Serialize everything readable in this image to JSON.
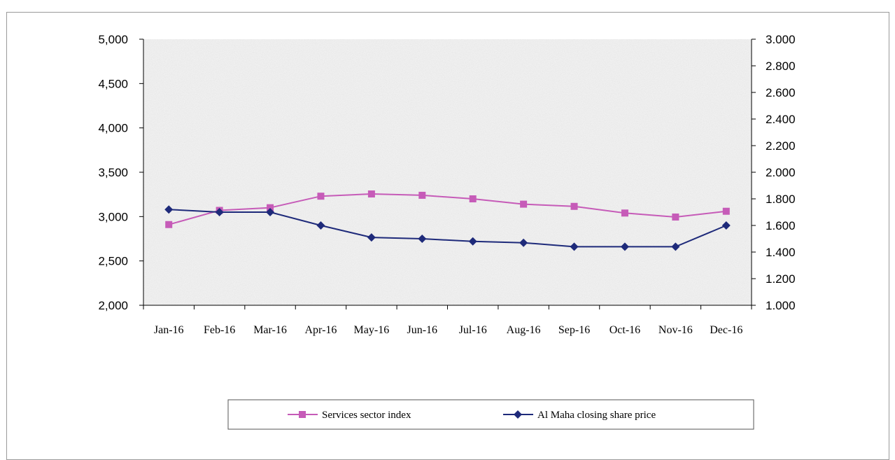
{
  "chart_data": {
    "type": "line",
    "categories": [
      "Jan-16",
      "Feb-16",
      "Mar-16",
      "Apr-16",
      "May-16",
      "Jun-16",
      "Jul-16",
      "Aug-16",
      "Sep-16",
      "Oct-16",
      "Nov-16",
      "Dec-16"
    ],
    "y_left": {
      "range": [
        2000,
        5000
      ],
      "ticks": [
        2000,
        2500,
        3000,
        3500,
        4000,
        4500,
        5000
      ],
      "tick_labels": [
        "2,000",
        "2,500",
        "3,000",
        "3,500",
        "4,000",
        "4,500",
        "5,000"
      ]
    },
    "y_right": {
      "range": [
        1.0,
        3.0
      ],
      "ticks": [
        1.0,
        1.2,
        1.4,
        1.6,
        1.8,
        2.0,
        2.2,
        2.4,
        2.6,
        2.8,
        3.0
      ],
      "tick_labels": [
        "1.000",
        "1.200",
        "1.400",
        "1.600",
        "1.800",
        "2.000",
        "2.200",
        "2.400",
        "2.600",
        "2.800",
        "3.000"
      ]
    },
    "series": [
      {
        "name": "Services sector index",
        "axis": "left",
        "marker": "square",
        "color": "#c65bb8",
        "values": [
          2910,
          3070,
          3100,
          3230,
          3255,
          3240,
          3200,
          3140,
          3115,
          3040,
          2995,
          3060
        ]
      },
      {
        "name": "Al Maha closing share price",
        "axis": "right",
        "marker": "diamond",
        "color": "#1e2a7a",
        "values": [
          1.72,
          1.7,
          1.7,
          1.6,
          1.51,
          1.5,
          1.48,
          1.47,
          1.44,
          1.44,
          1.44,
          1.6
        ]
      }
    ],
    "grid": false,
    "legend_position": "bottom"
  }
}
